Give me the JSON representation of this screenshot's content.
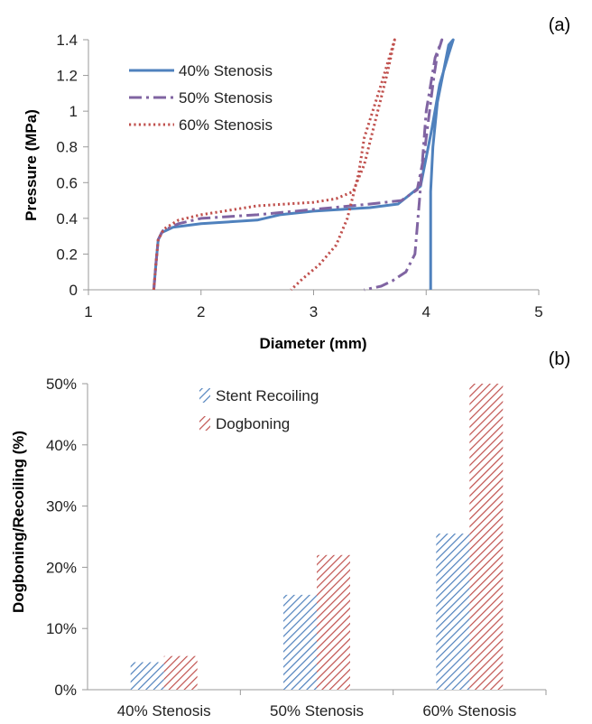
{
  "chart_data": [
    {
      "panel_label": "(a)",
      "type": "line",
      "xlabel": "Diameter (mm)",
      "ylabel": "Pressure (MPa)",
      "xlim": [
        1,
        5
      ],
      "ylim": [
        0,
        1.4
      ],
      "x_ticks": [
        "1",
        "2",
        "3",
        "4",
        "5"
      ],
      "y_ticks": [
        "0",
        "0.2",
        "0.4",
        "0.6",
        "0.8",
        "1",
        "1.2",
        "1.4"
      ],
      "grid": false,
      "legend_position": "top-left",
      "series": [
        {
          "name": "40% Stenosis",
          "style": "solid",
          "color": "#4f81bd",
          "points": [
            [
              1.58,
              0.0
            ],
            [
              1.6,
              0.15
            ],
            [
              1.62,
              0.28
            ],
            [
              1.65,
              0.32
            ],
            [
              1.75,
              0.35
            ],
            [
              2.0,
              0.37
            ],
            [
              2.5,
              0.39
            ],
            [
              2.7,
              0.42
            ],
            [
              3.0,
              0.44
            ],
            [
              3.5,
              0.46
            ],
            [
              3.75,
              0.48
            ],
            [
              3.95,
              0.58
            ],
            [
              4.05,
              0.9
            ],
            [
              4.12,
              1.15
            ],
            [
              4.2,
              1.32
            ],
            [
              4.24,
              1.4
            ],
            [
              4.2,
              1.37
            ],
            [
              4.1,
              1.05
            ],
            [
              4.06,
              0.8
            ],
            [
              4.04,
              0.55
            ],
            [
              4.04,
              0.0
            ]
          ]
        },
        {
          "name": "50% Stenosis",
          "style": "dash-dot",
          "color": "#8064a2",
          "points": [
            [
              1.58,
              0.0
            ],
            [
              1.6,
              0.15
            ],
            [
              1.62,
              0.28
            ],
            [
              1.66,
              0.33
            ],
            [
              1.8,
              0.37
            ],
            [
              2.0,
              0.4
            ],
            [
              2.5,
              0.42
            ],
            [
              3.0,
              0.45
            ],
            [
              3.5,
              0.48
            ],
            [
              3.78,
              0.5
            ],
            [
              3.92,
              0.56
            ],
            [
              3.98,
              0.75
            ],
            [
              4.03,
              1.0
            ],
            [
              4.07,
              1.2
            ],
            [
              4.1,
              1.32
            ],
            [
              4.14,
              1.4
            ],
            [
              4.08,
              1.3
            ],
            [
              4.0,
              1.0
            ],
            [
              3.94,
              0.5
            ],
            [
              3.9,
              0.2
            ],
            [
              3.82,
              0.1
            ],
            [
              3.7,
              0.05
            ],
            [
              3.6,
              0.02
            ],
            [
              3.45,
              0.0
            ]
          ]
        },
        {
          "name": "60% Stenosis",
          "style": "dotted",
          "color": "#c0504d",
          "points": [
            [
              1.58,
              0.0
            ],
            [
              1.6,
              0.15
            ],
            [
              1.62,
              0.28
            ],
            [
              1.67,
              0.34
            ],
            [
              1.8,
              0.39
            ],
            [
              2.0,
              0.42
            ],
            [
              2.5,
              0.47
            ],
            [
              3.0,
              0.49
            ],
            [
              3.2,
              0.51
            ],
            [
              3.35,
              0.55
            ],
            [
              3.45,
              0.7
            ],
            [
              3.55,
              0.95
            ],
            [
              3.65,
              1.2
            ],
            [
              3.72,
              1.4
            ],
            [
              3.6,
              1.15
            ],
            [
              3.45,
              0.85
            ],
            [
              3.4,
              0.65
            ],
            [
              3.3,
              0.4
            ],
            [
              3.2,
              0.25
            ],
            [
              3.05,
              0.14
            ],
            [
              2.9,
              0.06
            ],
            [
              2.8,
              0.0
            ]
          ]
        }
      ]
    },
    {
      "panel_label": "(b)",
      "type": "bar",
      "xlabel": "",
      "ylabel": "Dogboning/Recoiling (%)",
      "ylim": [
        0,
        50
      ],
      "y_ticks": [
        "0%",
        "10%",
        "20%",
        "30%",
        "40%",
        "50%"
      ],
      "grid": false,
      "legend_position": "top-left",
      "categories": [
        "40% Stenosis",
        "50% Stenosis",
        "60% Stenosis"
      ],
      "series": [
        {
          "name": "Stent Recoiling",
          "color": "#4f81bd",
          "values": [
            4.5,
            15.5,
            25.5
          ]
        },
        {
          "name": "Dogboning",
          "color": "#c0504d",
          "values": [
            5.5,
            22.0,
            50.0
          ]
        }
      ]
    }
  ]
}
